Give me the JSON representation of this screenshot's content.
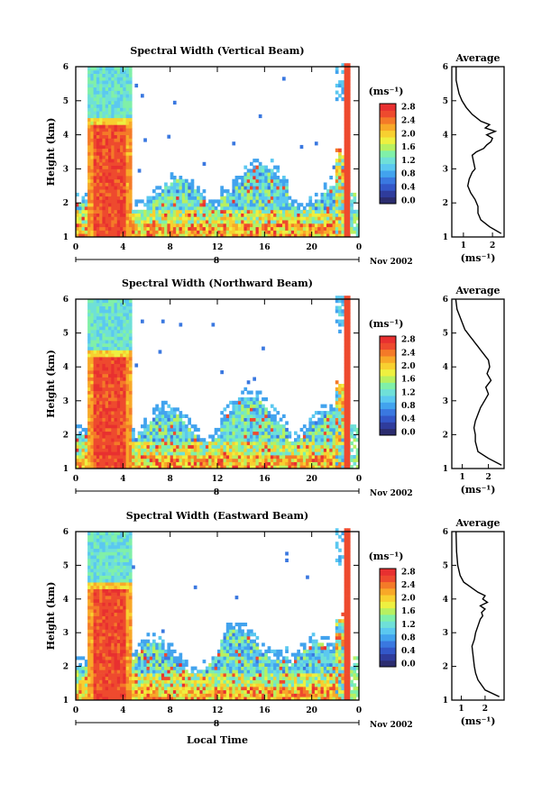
{
  "figure": {
    "xlabel": "Local Time",
    "date_label": "Nov 2002",
    "day_label": "8",
    "colorbar_unit": "(ms⁻¹)",
    "avg_title": "Average",
    "avg_xlabel": "(ms⁻¹)",
    "colors": {
      "scale": [
        "#2b2c6e",
        "#2f3c9c",
        "#3357c8",
        "#3a78e0",
        "#42a3ee",
        "#5bc8f0",
        "#6fe0d8",
        "#80f0a8",
        "#b8f060",
        "#eef040",
        "#f8d030",
        "#f8a828",
        "#f47a28",
        "#ee4a2e",
        "#e83030"
      ]
    }
  },
  "chart_data": [
    {
      "type": "heatmap",
      "title": "Spectral Width (Vertical Beam)",
      "ylabel": "Height (km)",
      "xlabel": "",
      "x_ticks": [
        "0",
        "4",
        "8",
        "12",
        "16",
        "20",
        "0"
      ],
      "y_ticks": [
        "1",
        "2",
        "3",
        "4",
        "5",
        "6"
      ],
      "xlim": [
        0,
        24
      ],
      "ylim": [
        1,
        6
      ],
      "colorbar": {
        "ticks": [
          "0.0",
          "0.4",
          "0.8",
          "1.2",
          "1.6",
          "2.0",
          "2.4",
          "2.8"
        ],
        "range": [
          0,
          3.0
        ]
      },
      "average_profile": {
        "title": "Average",
        "x_ticks": [
          "1",
          "2"
        ],
        "y_ticks": [
          "1",
          "2",
          "3",
          "4",
          "5",
          "6"
        ],
        "xlim": [
          0.6,
          2.4
        ],
        "x": [
          2.3,
          1.9,
          1.6,
          1.5,
          1.5,
          1.4,
          1.25,
          1.15,
          1.2,
          1.3,
          1.4,
          1.35,
          1.3,
          1.45,
          1.7,
          1.8,
          1.95,
          2.0,
          1.8,
          2.1,
          1.75,
          1.9,
          1.6,
          1.3,
          1.1,
          0.95,
          0.9,
          0.85,
          0.8,
          0.75,
          0.75
        ],
        "y": [
          1.1,
          1.3,
          1.5,
          1.7,
          1.9,
          2.1,
          2.3,
          2.5,
          2.7,
          2.9,
          3.0,
          3.2,
          3.4,
          3.5,
          3.6,
          3.7,
          3.8,
          3.9,
          4.0,
          4.1,
          4.2,
          4.3,
          4.4,
          4.6,
          4.8,
          5.0,
          5.1,
          5.2,
          5.4,
          5.6,
          6.0
        ]
      }
    },
    {
      "type": "heatmap",
      "title": "Spectral Width (Northward Beam)",
      "ylabel": "Height (km)",
      "xlabel": "",
      "x_ticks": [
        "0",
        "4",
        "8",
        "12",
        "16",
        "20",
        "0"
      ],
      "y_ticks": [
        "1",
        "2",
        "3",
        "4",
        "5",
        "6"
      ],
      "xlim": [
        0,
        24
      ],
      "ylim": [
        1,
        6
      ],
      "colorbar": {
        "ticks": [
          "0.0",
          "0.4",
          "0.8",
          "1.2",
          "1.6",
          "2.0",
          "2.4",
          "2.8"
        ],
        "range": [
          0,
          3.0
        ]
      },
      "average_profile": {
        "title": "Average",
        "x_ticks": [
          "1",
          "2"
        ],
        "y_ticks": [
          "1",
          "2",
          "3",
          "4",
          "5",
          "6"
        ],
        "xlim": [
          0.6,
          2.6
        ],
        "x": [
          2.5,
          2.0,
          1.6,
          1.5,
          1.5,
          1.45,
          1.5,
          1.6,
          1.7,
          1.85,
          2.0,
          1.9,
          2.1,
          1.95,
          2.05,
          2.0,
          1.9,
          1.8,
          1.7,
          1.6,
          1.5,
          1.4,
          1.3,
          1.2,
          1.1,
          1.0,
          0.9,
          0.8,
          0.75
        ],
        "y": [
          1.1,
          1.3,
          1.5,
          1.8,
          2.0,
          2.2,
          2.4,
          2.6,
          2.8,
          3.0,
          3.2,
          3.4,
          3.6,
          3.8,
          4.0,
          4.2,
          4.3,
          4.4,
          4.5,
          4.6,
          4.7,
          4.8,
          4.9,
          5.0,
          5.1,
          5.3,
          5.5,
          5.7,
          6.0
        ]
      }
    },
    {
      "type": "heatmap",
      "title": "Spectral Width (Eastward Beam)",
      "ylabel": "Height (km)",
      "xlabel": "Local Time",
      "x_ticks": [
        "0",
        "4",
        "8",
        "12",
        "16",
        "20",
        "0"
      ],
      "y_ticks": [
        "1",
        "2",
        "3",
        "4",
        "5",
        "6"
      ],
      "xlim": [
        0,
        24
      ],
      "ylim": [
        1,
        6
      ],
      "colorbar": {
        "ticks": [
          "0.0",
          "0.4",
          "0.8",
          "1.2",
          "1.6",
          "2.0",
          "2.4",
          "2.8"
        ],
        "range": [
          0,
          3.0
        ]
      },
      "average_profile": {
        "title": "Average",
        "x_ticks": [
          "1",
          "2"
        ],
        "y_ticks": [
          "1",
          "2",
          "3",
          "4",
          "5",
          "6"
        ],
        "xlim": [
          0.6,
          2.8
        ],
        "x": [
          2.6,
          2.0,
          1.7,
          1.6,
          1.55,
          1.5,
          1.45,
          1.55,
          1.6,
          1.7,
          1.8,
          1.9,
          1.85,
          2.0,
          1.8,
          2.1,
          1.9,
          2.0,
          1.7,
          1.5,
          1.3,
          1.1,
          0.95,
          0.85,
          0.8,
          0.78
        ],
        "y": [
          1.1,
          1.3,
          1.6,
          1.8,
          2.0,
          2.3,
          2.6,
          2.8,
          3.0,
          3.2,
          3.4,
          3.5,
          3.6,
          3.7,
          3.8,
          3.9,
          4.0,
          4.1,
          4.2,
          4.3,
          4.4,
          4.5,
          4.7,
          5.0,
          5.4,
          6.0
        ]
      }
    }
  ]
}
